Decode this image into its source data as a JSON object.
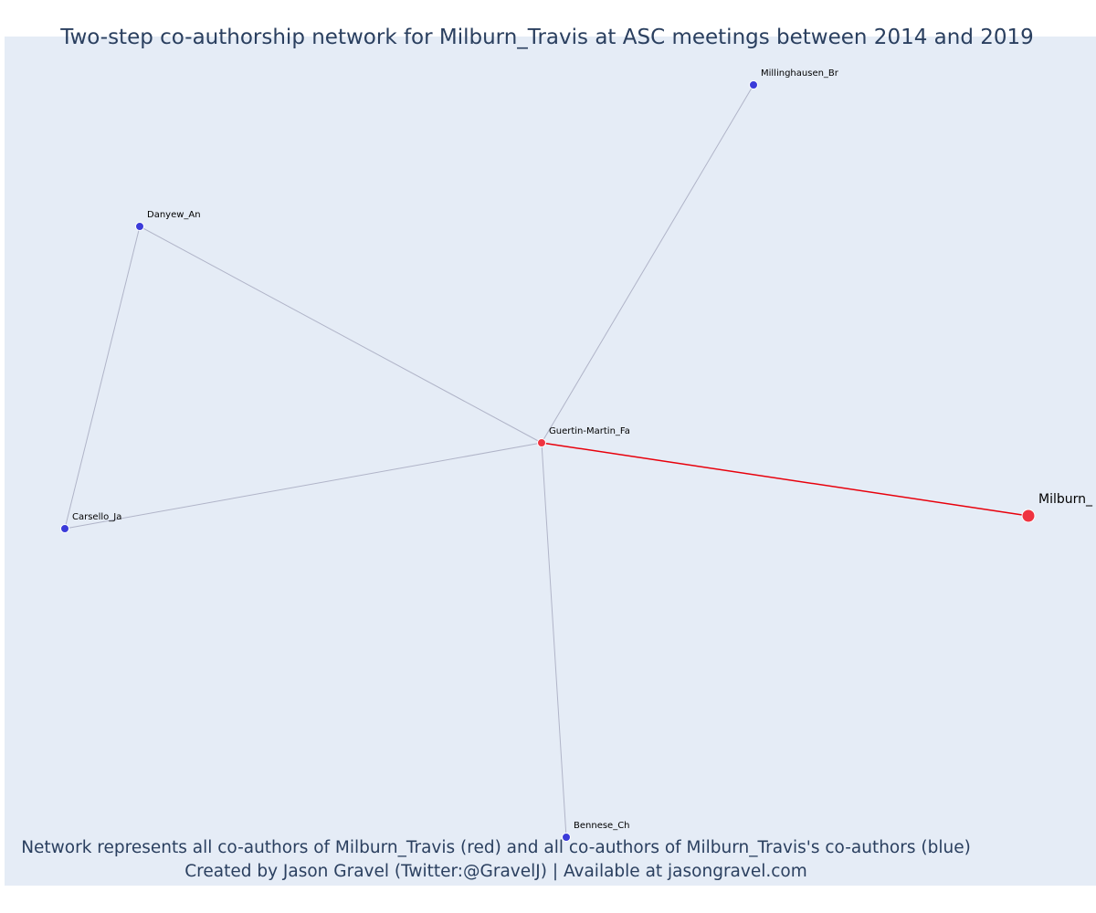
{
  "title": "Two-step co-authorship network for Milburn_Travis at ASC meetings between 2014 and 2019",
  "footer": {
    "line1": "Network represents all co-authors of Milburn_Travis (red) and all co-authors of Milburn_Travis's co-authors (blue)",
    "line2": "Created by Jason Gravel (Twitter:@GravelJ) | Available at jasongravel.com"
  },
  "colors": {
    "background": "#e5ecf6",
    "focal": "#ef3340",
    "coauthor": "#ef3340",
    "second_degree": "#3b3bd9",
    "focal_edge": "#e8000b",
    "edge": "#b0b4c8",
    "text": "#2a3f5f"
  },
  "nodes": [
    {
      "id": "Milburn_Travis",
      "label": "Milburn_",
      "group": "focal"
    },
    {
      "id": "Guertin-Martin_Fa",
      "label": "Guertin-Martin_Fa",
      "group": "coauthor"
    },
    {
      "id": "Millinghausen_Br",
      "label": "Millinghausen_Br",
      "group": "second_degree"
    },
    {
      "id": "Danyew_An",
      "label": "Danyew_An",
      "group": "second_degree"
    },
    {
      "id": "Carsello_Ja",
      "label": "Carsello_Ja",
      "group": "second_degree"
    },
    {
      "id": "Bennese_Ch",
      "label": "Bennese_Ch",
      "group": "second_degree"
    }
  ],
  "edges": [
    {
      "source": "Guertin-Martin_Fa",
      "target": "Milburn_Travis",
      "type": "focal"
    },
    {
      "source": "Guertin-Martin_Fa",
      "target": "Millinghausen_Br",
      "type": "second_degree"
    },
    {
      "source": "Guertin-Martin_Fa",
      "target": "Danyew_An",
      "type": "second_degree"
    },
    {
      "source": "Guertin-Martin_Fa",
      "target": "Carsello_Ja",
      "type": "second_degree"
    },
    {
      "source": "Guertin-Martin_Fa",
      "target": "Bennese_Ch",
      "type": "second_degree"
    },
    {
      "source": "Danyew_An",
      "target": "Carsello_Ja",
      "type": "second_degree"
    }
  ]
}
